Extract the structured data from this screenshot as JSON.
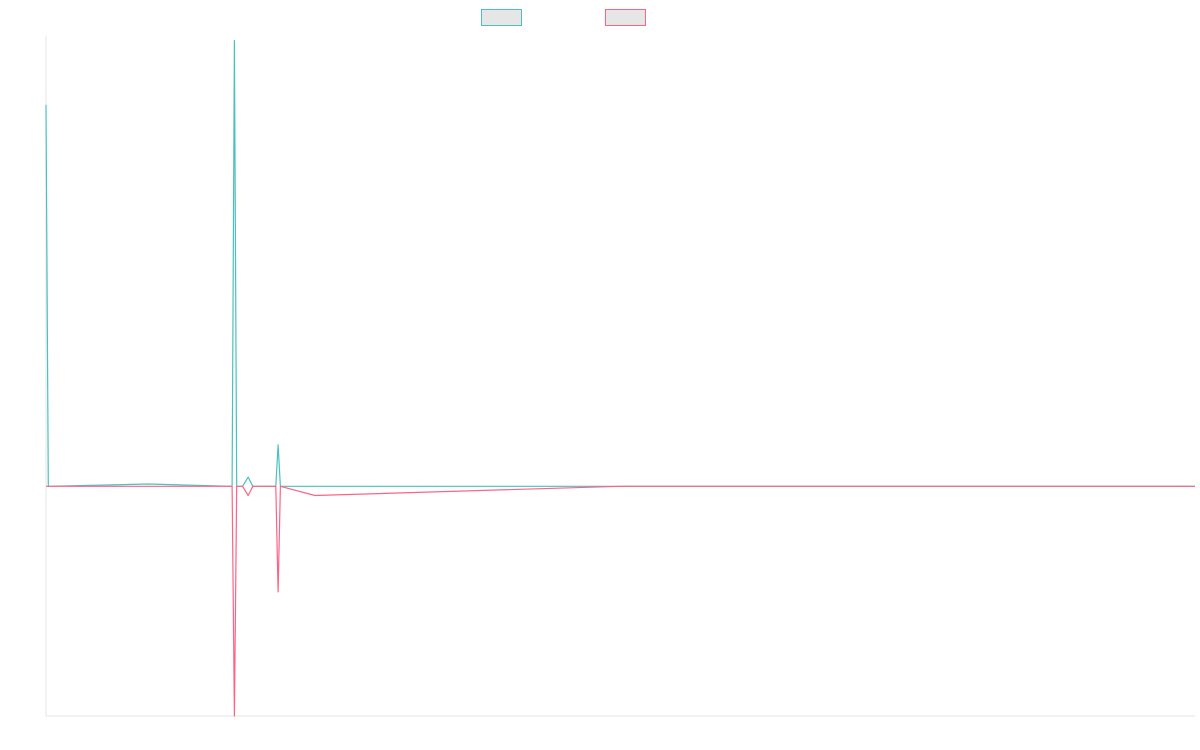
{
  "chart_data": {
    "type": "line",
    "title": "",
    "xlabel": "",
    "ylabel": "",
    "xlim": [
      0,
      100
    ],
    "ylim": [
      -50,
      98
    ],
    "grid": false,
    "legend_placement": "top-center",
    "x": [
      0,
      0.2,
      8.9,
      16.2,
      16.4,
      16.6,
      17.1,
      17.6,
      18.0,
      20.0,
      20.2,
      20.4,
      23.4,
      50,
      100
    ],
    "series": [
      {
        "name": "",
        "color": "#4bc0c0",
        "fill": "#e6e6e6",
        "values": [
          83,
          0,
          0.5,
          0,
          97,
          0,
          0,
          2,
          0,
          0,
          9,
          0,
          0,
          0,
          0
        ]
      },
      {
        "name": "",
        "color": "#ff6384",
        "fill": "#e6e6e6",
        "values": [
          0,
          0,
          0,
          0,
          -50,
          0,
          0,
          -2,
          0,
          0,
          -23,
          0,
          -2,
          0,
          0
        ]
      }
    ]
  }
}
